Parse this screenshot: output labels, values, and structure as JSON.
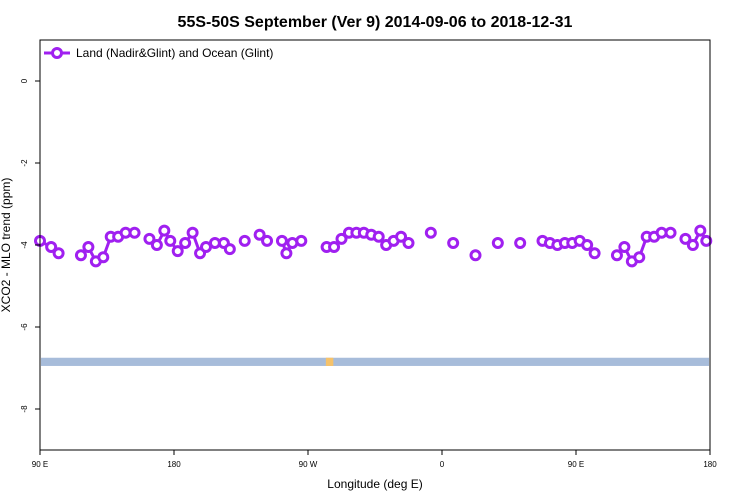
{
  "chart_data": {
    "type": "line",
    "title": "55S-50S September (Ver 9)   2014-09-06 to 2018-12-31",
    "xlabel": "Longitude (deg E)",
    "ylabel": "XCO2 - MLO trend (ppm)",
    "xlim": [
      90,
      540
    ],
    "ylim": [
      -9,
      1
    ],
    "x_ticks": [
      {
        "value": 90,
        "label": "90 E"
      },
      {
        "value": 180,
        "label": "180"
      },
      {
        "value": 270,
        "label": "90 W"
      },
      {
        "value": 360,
        "label": "0"
      },
      {
        "value": 450,
        "label": "90 E"
      },
      {
        "value": 540,
        "label": "180"
      }
    ],
    "y_ticks": [
      {
        "value": 0,
        "label": "0"
      },
      {
        "value": -2,
        "label": "-2"
      },
      {
        "value": -4,
        "label": "-4"
      },
      {
        "value": -6,
        "label": "-6"
      },
      {
        "value": -8,
        "label": "-8"
      }
    ],
    "grid": false,
    "legend_position": "top-left",
    "series": [
      {
        "name": "Land (Nadir&Glint) and Ocean (Glint)",
        "color": "#a020f0",
        "segments": [
          [
            [
              90,
              -3.9
            ],
            [
              97.5,
              -4.05
            ],
            [
              102.5,
              -4.2
            ]
          ],
          [
            [
              117.5,
              -4.25
            ],
            [
              122.5,
              -4.05
            ],
            [
              127.5,
              -4.4
            ],
            [
              132.5,
              -4.3
            ],
            [
              137.5,
              -3.8
            ],
            [
              142.5,
              -3.8
            ],
            [
              147.5,
              -3.7
            ],
            [
              153.5,
              -3.7
            ]
          ],
          [
            [
              163.5,
              -3.85
            ],
            [
              168.5,
              -4.0
            ],
            [
              173.5,
              -3.65
            ],
            [
              177.5,
              -3.9
            ],
            [
              182.5,
              -4.15
            ],
            [
              187.5,
              -3.95
            ],
            [
              192.5,
              -3.7
            ],
            [
              197.5,
              -4.2
            ],
            [
              201.5,
              -4.05
            ],
            [
              207.5,
              -3.95
            ],
            [
              213.5,
              -3.95
            ],
            [
              217.5,
              -4.1
            ]
          ],
          [
            [
              227.5,
              -3.9
            ]
          ],
          [
            [
              237.5,
              -3.75
            ],
            [
              242.5,
              -3.9
            ]
          ],
          [
            [
              252.5,
              -3.9
            ],
            [
              255.5,
              -4.2
            ],
            [
              259.5,
              -3.95
            ],
            [
              265.5,
              -3.9
            ]
          ],
          [
            [
              282.5,
              -4.05
            ],
            [
              287.5,
              -4.05
            ],
            [
              292.5,
              -3.85
            ],
            [
              297.5,
              -3.7
            ],
            [
              302.5,
              -3.7
            ],
            [
              307.5,
              -3.7
            ],
            [
              312.5,
              -3.75
            ],
            [
              317.5,
              -3.8
            ],
            [
              322.5,
              -4.0
            ],
            [
              327.5,
              -3.9
            ],
            [
              332.5,
              -3.8
            ],
            [
              337.5,
              -3.95
            ]
          ],
          [
            [
              352.5,
              -3.7
            ]
          ],
          [
            [
              367.5,
              -3.95
            ]
          ],
          [
            [
              382.5,
              -4.25
            ]
          ],
          [
            [
              397.5,
              -3.95
            ]
          ],
          [
            [
              412.5,
              -3.95
            ]
          ],
          [
            [
              427.5,
              -3.9
            ],
            [
              432.5,
              -3.95
            ],
            [
              437.5,
              -4.0
            ],
            [
              442.5,
              -3.95
            ],
            [
              447.5,
              -3.95
            ],
            [
              452.5,
              -3.9
            ],
            [
              457.5,
              -4.0
            ],
            [
              462.5,
              -4.2
            ]
          ],
          [
            [
              477.5,
              -4.25
            ],
            [
              482.5,
              -4.05
            ],
            [
              487.5,
              -4.4
            ],
            [
              492.5,
              -4.3
            ],
            [
              497.5,
              -3.8
            ],
            [
              502.5,
              -3.8
            ],
            [
              507.5,
              -3.7
            ],
            [
              513.5,
              -3.7
            ]
          ],
          [
            [
              523.5,
              -3.85
            ],
            [
              528.5,
              -4.0
            ],
            [
              533.5,
              -3.65
            ],
            [
              537.5,
              -3.9
            ]
          ]
        ]
      }
    ],
    "background_band": {
      "y_range": [
        -6.95,
        -6.75
      ],
      "color": "#a7bcda",
      "highlight_color": "#f5c26b",
      "highlights": [
        {
          "x": [
            282,
            287
          ],
          "y": [
            -6.95,
            -6.75
          ]
        }
      ]
    }
  }
}
